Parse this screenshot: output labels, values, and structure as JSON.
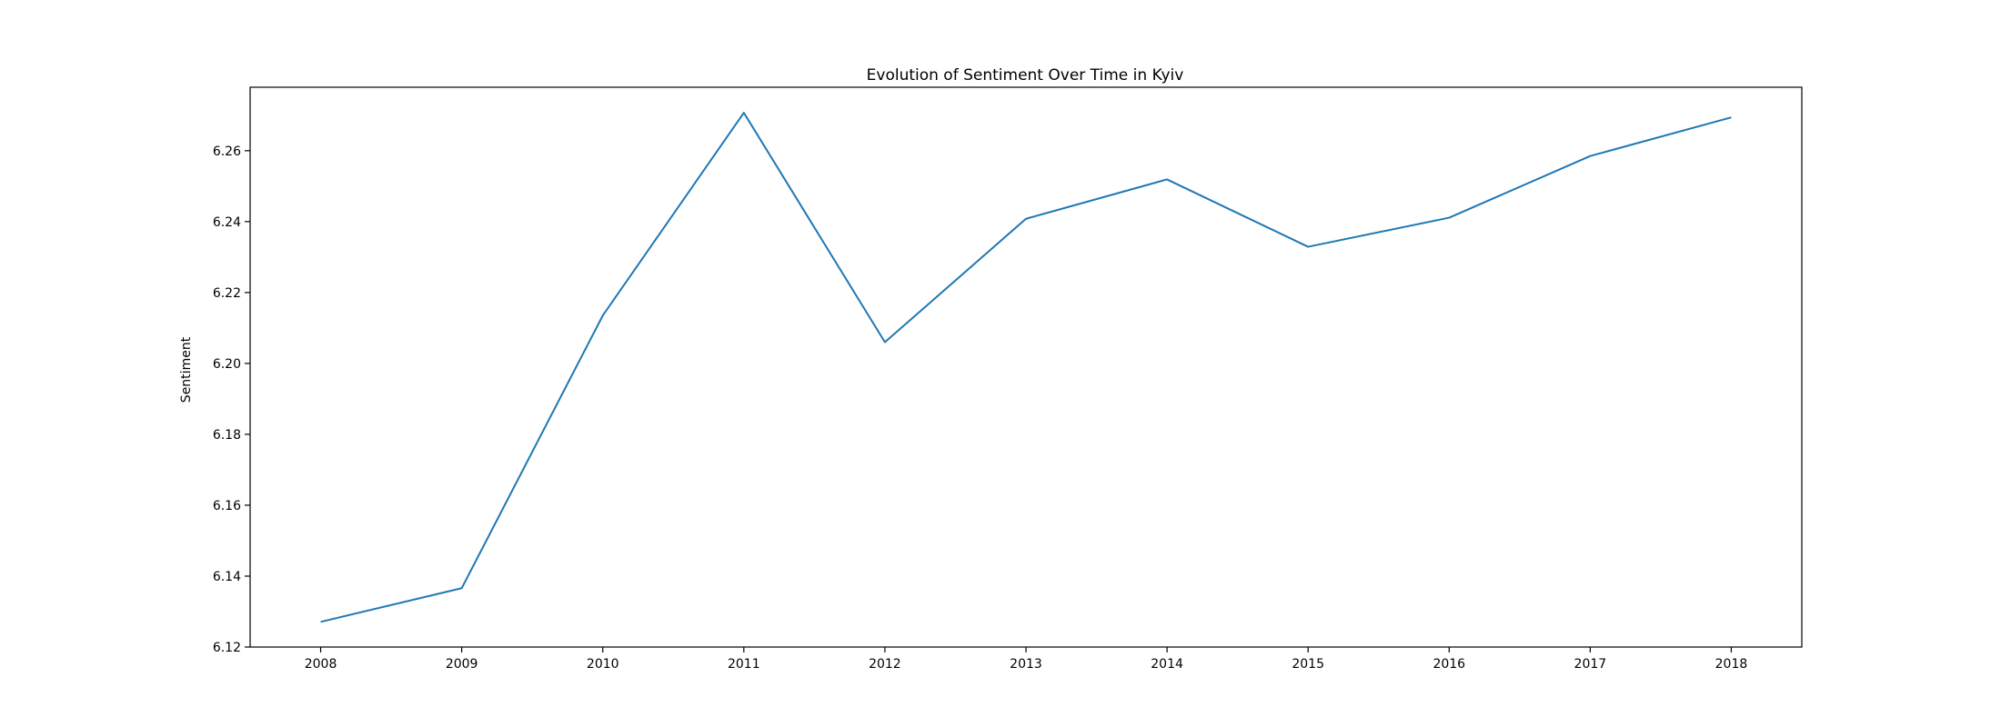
{
  "chart_data": {
    "type": "line",
    "title": "Evolution of Sentiment Over Time in Kyiv",
    "xlabel": "",
    "ylabel": "Sentiment",
    "x": [
      2008,
      2009,
      2010,
      2011,
      2012,
      2013,
      2014,
      2015,
      2016,
      2017,
      2018
    ],
    "series": [
      {
        "color": "#1f77b4",
        "values": [
          6.1271,
          6.1366,
          6.2135,
          6.2707,
          6.206,
          6.2408,
          6.2519,
          6.2329,
          6.2411,
          6.2585,
          6.2694
        ]
      }
    ],
    "xlim": [
      2007.5,
      2018.5
    ],
    "ylim": [
      6.12,
      6.2779
    ],
    "xticks": [
      "2008",
      "2009",
      "2010",
      "2011",
      "2012",
      "2013",
      "2014",
      "2015",
      "2016",
      "2017",
      "2018"
    ],
    "yticks": [
      "6.12",
      "6.14",
      "6.16",
      "6.18",
      "6.20",
      "6.22",
      "6.24",
      "6.26"
    ],
    "grid": false,
    "legend": "none"
  }
}
